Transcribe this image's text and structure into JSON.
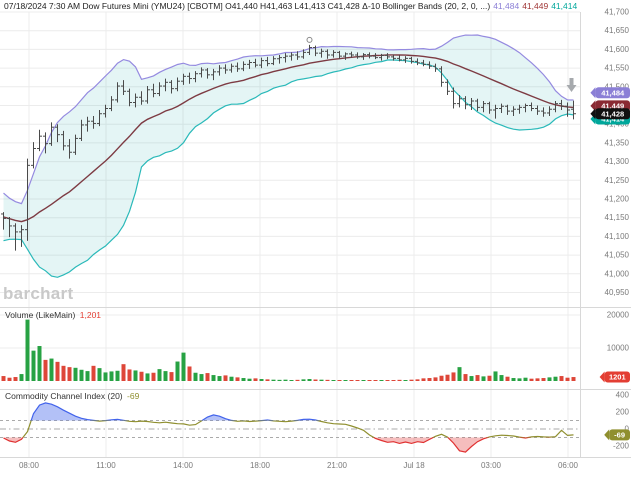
{
  "header": {
    "segments": [
      {
        "text": "07/18/2024 7:30 AM Dow Futures Mini (YMU24) [CBOTM] O41,440 H41,463 L41,413 C41,428 Δ-10 Bollinger Bands  (20, 2, 0, ...)",
        "color": "#222222"
      },
      {
        "text": "41,484",
        "color": "#8b7fd6"
      },
      {
        "text": "41,449",
        "color": "#a03636"
      },
      {
        "text": "41,414",
        "color": "#00a79b"
      }
    ]
  },
  "watermark": {
    "text": "barchart"
  },
  "panels": {
    "volume": {
      "title": "Volume  (LikeMain)",
      "value": "1,201",
      "value_color": "#e33e33"
    },
    "cci": {
      "title": "Commodity Channel Index  (20)",
      "value": "-69",
      "value_color": "#8f8f2f"
    }
  },
  "time_axis": {
    "labels": [
      "08:00",
      "11:00",
      "14:00",
      "18:00",
      "21:00",
      "Jul 18",
      "03:00",
      "06:00"
    ]
  },
  "price_badges": [
    {
      "text": "41,484",
      "value": 41484,
      "color": "#8b7fd6"
    },
    {
      "text": "41,414",
      "value": 41414,
      "color": "#00a79b"
    },
    {
      "text": "41,449",
      "value": 41449,
      "color": "#8a2a33"
    },
    {
      "text": "41,428",
      "value": 41428,
      "color": "#111111"
    }
  ],
  "colors": {
    "bar": "#4a4a4a",
    "bb_upper": "#958ae0",
    "bb_middle": "#7d3b43",
    "bb_lower": "#2ab9b9",
    "bb_fill": "#40baba",
    "vol_up": "#27a243",
    "vol_down": "#de4638",
    "cci_line": "#8f8f2f",
    "cci_high": "#4263eb",
    "cci_low": "#e03131",
    "grid": "#ececec",
    "separator": "#d8d8d8",
    "axis_text": "#7a7a7a",
    "annotation": "#a6a9ad"
  },
  "chart_data": [
    {
      "type": "ohlc",
      "title": "Dow Futures Mini (YMU24) 15-min bars with Bollinger Bands (20,2)",
      "ylim": [
        40914,
        41700
      ],
      "price_ticks": [
        41700,
        41650,
        41600,
        41550,
        41500,
        41450,
        41400,
        41350,
        41300,
        41250,
        41200,
        41150,
        41100,
        41050,
        41000,
        40950
      ],
      "last": {
        "open": 41440,
        "high": 41463,
        "low": 41413,
        "close": 41428,
        "change": -10
      },
      "bollinger": {
        "period": 20,
        "stdev": 2,
        "last_upper": 41484,
        "last_middle": 41449,
        "last_lower": 41414,
        "seed_closes": [
          41210,
          41225,
          41205,
          41180,
          41190,
          41160,
          41130,
          41150,
          41175,
          41140,
          41110,
          41125,
          41095,
          41115,
          41140,
          41120,
          41150,
          41170,
          41155,
          41160
        ]
      },
      "annotations": {
        "high_marker_bar": 51,
        "down_arrow_bar": 95
      },
      "bars": [
        [
          41160,
          41165,
          41118,
          41148
        ],
        [
          41148,
          41152,
          41098,
          41128
        ],
        [
          41128,
          41135,
          41062,
          41112
        ],
        [
          41112,
          41130,
          41072,
          41118
        ],
        [
          41118,
          41308,
          41088,
          41290
        ],
        [
          41290,
          41352,
          41282,
          41335
        ],
        [
          41335,
          41385,
          41328,
          41368
        ],
        [
          41368,
          41378,
          41322,
          41348
        ],
        [
          41348,
          41405,
          41342,
          41392
        ],
        [
          41392,
          41400,
          41352,
          41372
        ],
        [
          41372,
          41382,
          41330,
          41342
        ],
        [
          41342,
          41360,
          41308,
          41325
        ],
        [
          41325,
          41372,
          41318,
          41362
        ],
        [
          41362,
          41412,
          41355,
          41398
        ],
        [
          41398,
          41420,
          41380,
          41408
        ],
        [
          41408,
          41422,
          41388,
          41402
        ],
        [
          41402,
          41438,
          41395,
          41428
        ],
        [
          41428,
          41452,
          41418,
          41442
        ],
        [
          41442,
          41475,
          41435,
          41465
        ],
        [
          41465,
          41512,
          41458,
          41502
        ],
        [
          41502,
          41518,
          41478,
          41488
        ],
        [
          41488,
          41495,
          41448,
          41458
        ],
        [
          41458,
          41482,
          41445,
          41472
        ],
        [
          41472,
          41488,
          41452,
          41462
        ],
        [
          41462,
          41502,
          41455,
          41492
        ],
        [
          41492,
          41508,
          41472,
          41482
        ],
        [
          41482,
          41512,
          41475,
          41502
        ],
        [
          41502,
          41522,
          41488,
          41512
        ],
        [
          41512,
          41518,
          41482,
          41495
        ],
        [
          41495,
          41525,
          41488,
          41515
        ],
        [
          41515,
          41535,
          41505,
          41528
        ],
        [
          41528,
          41538,
          41508,
          41522
        ],
        [
          41522,
          41542,
          41512,
          41535
        ],
        [
          41535,
          41552,
          41525,
          41545
        ],
        [
          41545,
          41550,
          41522,
          41532
        ],
        [
          41532,
          41548,
          41518,
          41540
        ],
        [
          41540,
          41558,
          41530,
          41550
        ],
        [
          41550,
          41560,
          41535,
          41545
        ],
        [
          41545,
          41562,
          41538,
          41555
        ],
        [
          41555,
          41565,
          41540,
          41548
        ],
        [
          41548,
          41568,
          41542,
          41560
        ],
        [
          41560,
          41572,
          41548,
          41565
        ],
        [
          41565,
          41575,
          41552,
          41558
        ],
        [
          41558,
          41578,
          41550,
          41570
        ],
        [
          41570,
          41580,
          41555,
          41562
        ],
        [
          41562,
          41582,
          41558,
          41575
        ],
        [
          41575,
          41585,
          41562,
          41578
        ],
        [
          41578,
          41590,
          41565,
          41582
        ],
        [
          41582,
          41592,
          41570,
          41585
        ],
        [
          41585,
          41595,
          41572,
          41580
        ],
        [
          41580,
          41600,
          41575,
          41592
        ],
        [
          41592,
          41612,
          41585,
          41605
        ],
        [
          41605,
          41610,
          41582,
          41590
        ],
        [
          41590,
          41602,
          41578,
          41595
        ],
        [
          41595,
          41600,
          41575,
          41585
        ],
        [
          41585,
          41598,
          41578,
          41592
        ],
        [
          41592,
          41596,
          41575,
          41582
        ],
        [
          41582,
          41592,
          41572,
          41588
        ],
        [
          41588,
          41594,
          41578,
          41585
        ],
        [
          41585,
          41592,
          41575,
          41580
        ],
        [
          41580,
          41590,
          41572,
          41586
        ],
        [
          41586,
          41592,
          41576,
          41582
        ],
        [
          41582,
          41590,
          41574,
          41578
        ],
        [
          41578,
          41588,
          41570,
          41584
        ],
        [
          41584,
          41590,
          41574,
          41580
        ],
        [
          41580,
          41586,
          41570,
          41576
        ],
        [
          41576,
          41584,
          41568,
          41572
        ],
        [
          41572,
          41582,
          41564,
          41576
        ],
        [
          41576,
          41580,
          41562,
          41568
        ],
        [
          41568,
          41576,
          41558,
          41564
        ],
        [
          41564,
          41572,
          41555,
          41560
        ],
        [
          41560,
          41568,
          41548,
          41555
        ],
        [
          41555,
          41562,
          41540,
          41548
        ],
        [
          41548,
          41555,
          41500,
          41512
        ],
        [
          41512,
          41520,
          41478,
          41488
        ],
        [
          41488,
          41498,
          41442,
          41455
        ],
        [
          41455,
          41478,
          41445,
          41468
        ],
        [
          41468,
          41475,
          41440,
          41452
        ],
        [
          41452,
          41470,
          41438,
          41462
        ],
        [
          41462,
          41468,
          41435,
          41445
        ],
        [
          41445,
          41462,
          41432,
          41455
        ],
        [
          41455,
          41460,
          41428,
          41438
        ],
        [
          41438,
          41452,
          41415,
          41442
        ],
        [
          41442,
          41455,
          41430,
          41448
        ],
        [
          41448,
          41452,
          41425,
          41435
        ],
        [
          41435,
          41448,
          41422,
          41440
        ],
        [
          41440,
          41452,
          41428,
          41445
        ],
        [
          41445,
          41455,
          41432,
          41450
        ],
        [
          41450,
          41458,
          41435,
          41442
        ],
        [
          41442,
          41450,
          41425,
          41435
        ],
        [
          41435,
          41445,
          41420,
          41430
        ],
        [
          41430,
          41448,
          41422,
          41440
        ],
        [
          41440,
          41462,
          41432,
          41455
        ],
        [
          41455,
          41465,
          41438,
          41448
        ],
        [
          41448,
          41458,
          41420,
          41438
        ],
        [
          41440,
          41463,
          41413,
          41428
        ]
      ]
    },
    {
      "type": "bar",
      "title": "Volume (LikeMain)",
      "last_value": 1201,
      "ylim": [
        0,
        22000
      ],
      "ticks": [
        20000,
        10000
      ],
      "badge": {
        "text": "1201",
        "color": "#e33e33"
      },
      "values": [
        1500,
        1000,
        1200,
        2100,
        18600,
        9200,
        10600,
        6400,
        6800,
        5800,
        4600,
        4200,
        4000,
        3400,
        3000,
        4600,
        3900,
        2600,
        2900,
        3100,
        5100,
        3500,
        3200,
        2800,
        2300,
        2500,
        3600,
        3000,
        2700,
        5900,
        8600,
        4400,
        2500,
        2100,
        2400,
        1800,
        1500,
        1700,
        1300,
        1100,
        900,
        700,
        800,
        600,
        500,
        400,
        350,
        400,
        300,
        350,
        500,
        600,
        450,
        400,
        350,
        300,
        250,
        300,
        250,
        200,
        250,
        300,
        250,
        200,
        250,
        300,
        350,
        300,
        400,
        500,
        800,
        900,
        1100,
        1600,
        1900,
        2600,
        4200,
        2100,
        1500,
        1800,
        1400,
        1600,
        2900,
        1800,
        1300,
        900,
        800,
        1000,
        700,
        800,
        900,
        1100,
        1300,
        1500,
        1000,
        1201
      ]
    },
    {
      "type": "line",
      "title": "Commodity Channel Index (20)",
      "last_value": -69,
      "ylim": [
        -330,
        430
      ],
      "ticks": [
        400,
        200,
        0,
        -200
      ],
      "guides": [
        100,
        0,
        -100
      ],
      "badge": {
        "text": "-69",
        "color": "#8f8f2f"
      },
      "values": [
        -105,
        -140,
        -155,
        -120,
        -30,
        180,
        280,
        305,
        290,
        260,
        220,
        185,
        150,
        125,
        110,
        100,
        92,
        98,
        108,
        112,
        102,
        90,
        85,
        92,
        88,
        78,
        72,
        80,
        70,
        62,
        60,
        45,
        52,
        95,
        140,
        165,
        150,
        120,
        100,
        90,
        95,
        88,
        92,
        98,
        105,
        95,
        90,
        85,
        92,
        100,
        112,
        115,
        105,
        88,
        72,
        62,
        58,
        55,
        35,
        12,
        -15,
        -70,
        -110,
        -135,
        -155,
        -148,
        -168,
        -152,
        -168,
        -148,
        -158,
        -122,
        -85,
        -62,
        -95,
        -165,
        -255,
        -270,
        -205,
        -148,
        -115,
        -92,
        -80,
        -72,
        -76,
        -82,
        -95,
        -105,
        -92,
        -88,
        -92,
        -95,
        -90,
        -15,
        -75,
        -69
      ]
    }
  ]
}
